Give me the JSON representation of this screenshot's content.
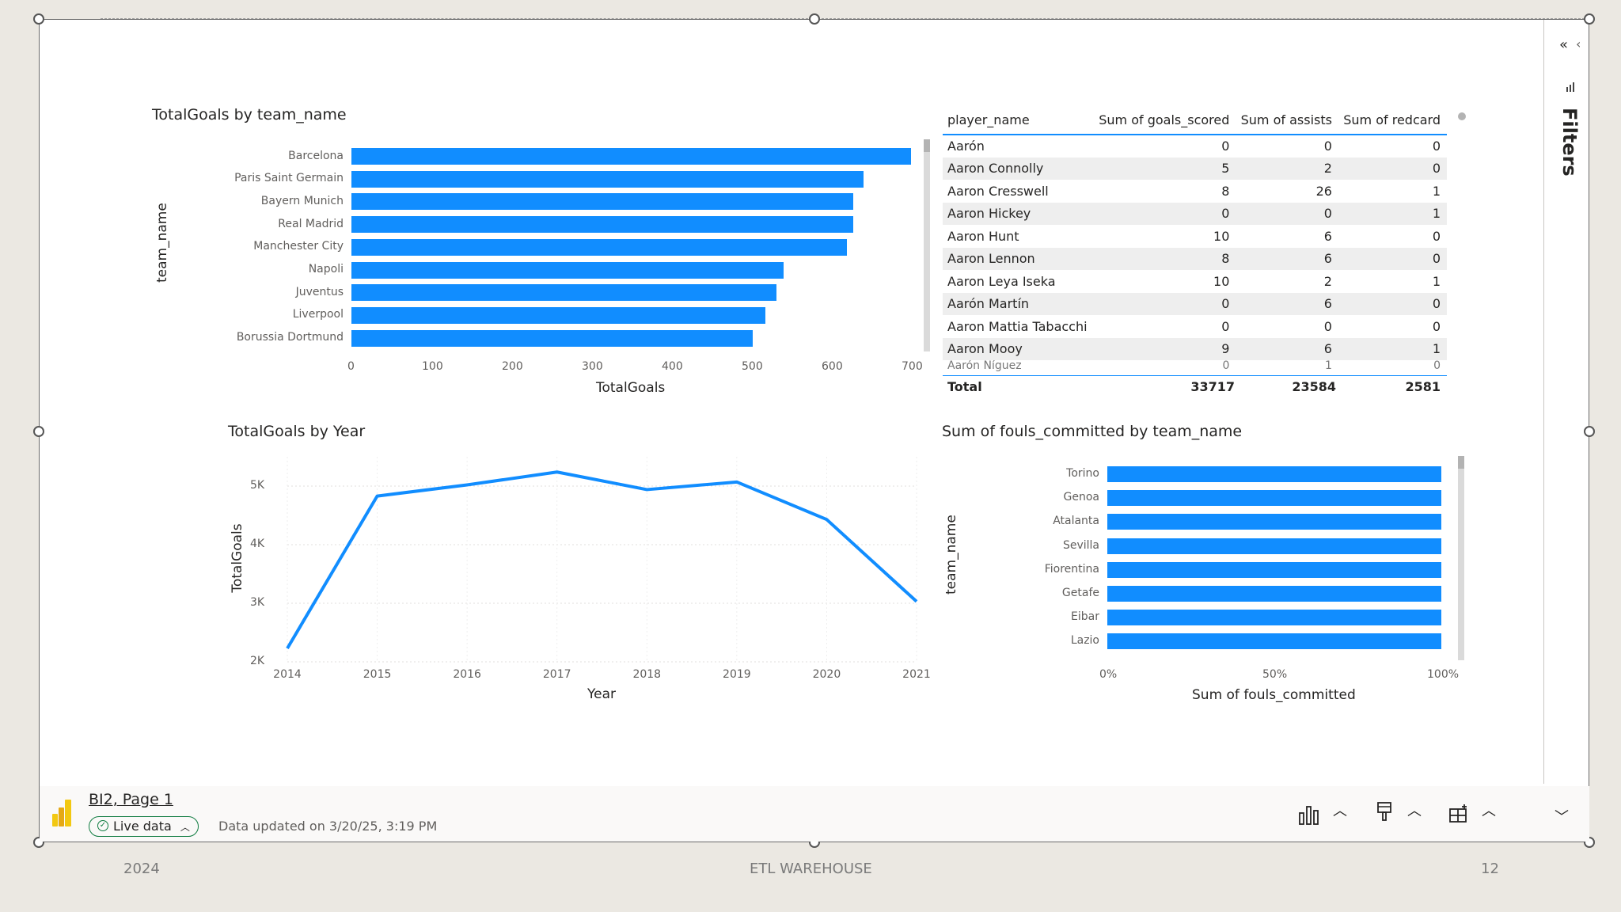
{
  "bar_chart_goals": {
    "title": "TotalGoals by team_name",
    "ylabel": "team_name",
    "xlabel": "TotalGoals",
    "xticks": [
      "0",
      "100",
      "200",
      "300",
      "400",
      "500",
      "600",
      "700"
    ]
  },
  "matrix": {
    "headers": [
      "player_name",
      "Sum of goals_scored",
      "Sum of assists",
      "Sum of redcard"
    ],
    "rows": [
      [
        "Aarón",
        "0",
        "0",
        "0"
      ],
      [
        "Aaron Connolly",
        "5",
        "2",
        "0"
      ],
      [
        "Aaron Cresswell",
        "8",
        "26",
        "1"
      ],
      [
        "Aaron Hickey",
        "0",
        "0",
        "1"
      ],
      [
        "Aaron Hunt",
        "10",
        "6",
        "0"
      ],
      [
        "Aaron Lennon",
        "8",
        "6",
        "0"
      ],
      [
        "Aaron Leya Iseka",
        "10",
        "2",
        "1"
      ],
      [
        "Aarón Martín",
        "0",
        "6",
        "0"
      ],
      [
        "Aaron Mattia Tabacchi",
        "0",
        "0",
        "0"
      ],
      [
        "Aaron Mooy",
        "9",
        "6",
        "1"
      ],
      [
        "Aarón Ñíguez",
        "0",
        "1",
        "0"
      ]
    ],
    "total": {
      "label": "Total",
      "goals": "33717",
      "assists": "23584",
      "redcard": "2581"
    }
  },
  "line_chart": {
    "title": "TotalGoals by Year",
    "ylabel": "TotalGoals",
    "xlabel": "Year",
    "yticks": [
      "5K",
      "4K",
      "3K",
      "2K"
    ]
  },
  "fouls_chart": {
    "title": "Sum of fouls_committed by team_name",
    "ylabel": "team_name",
    "xlabel": "Sum of fouls_committed",
    "xticks": [
      "0%",
      "50%",
      "100%"
    ]
  },
  "chart_data": [
    {
      "type": "bar",
      "orientation": "horizontal",
      "title": "TotalGoals by team_name",
      "xlabel": "TotalGoals",
      "ylabel": "team_name",
      "categories": [
        "Barcelona",
        "Paris Saint Germain",
        "Bayern Munich",
        "Real Madrid",
        "Manchester City",
        "Napoli",
        "Juventus",
        "Liverpool",
        "Borussia Dortmund"
      ],
      "values": [
        700,
        641,
        628,
        628,
        620,
        541,
        532,
        518,
        502
      ],
      "xlim": [
        0,
        700
      ],
      "color": "#118dff"
    },
    {
      "type": "line",
      "title": "TotalGoals by Year",
      "xlabel": "Year",
      "ylabel": "TotalGoals",
      "x": [
        "2014",
        "2015",
        "2016",
        "2017",
        "2018",
        "2019",
        "2020",
        "2021"
      ],
      "values": [
        2230,
        4830,
        5020,
        5240,
        4940,
        5070,
        4430,
        3030
      ],
      "ylim": [
        2000,
        5500
      ],
      "color": "#118dff"
    },
    {
      "type": "bar",
      "orientation": "horizontal",
      "title": "Sum of fouls_committed by team_name",
      "xlabel": "Sum of fouls_committed",
      "ylabel": "team_name",
      "categories": [
        "Torino",
        "Genoa",
        "Atalanta",
        "Sevilla",
        "Fiorentina",
        "Getafe",
        "Eibar",
        "Lazio"
      ],
      "values": [
        100,
        100,
        100,
        100,
        100,
        100,
        100,
        100
      ],
      "unit": "%",
      "xlim": [
        0,
        100
      ],
      "color": "#118dff"
    }
  ],
  "filters": {
    "label": "Filters"
  },
  "bottom_bar": {
    "page_link": "BI2, Page 1",
    "live_data": "Live data",
    "updated": "Data updated on 3/20/25, 3:19 PM"
  },
  "footer": {
    "year": "2024",
    "center": "ETL WAREHOUSE",
    "page": "12"
  },
  "colors": {
    "accent": "#118dff",
    "logo_yellow": "#f2c811"
  }
}
